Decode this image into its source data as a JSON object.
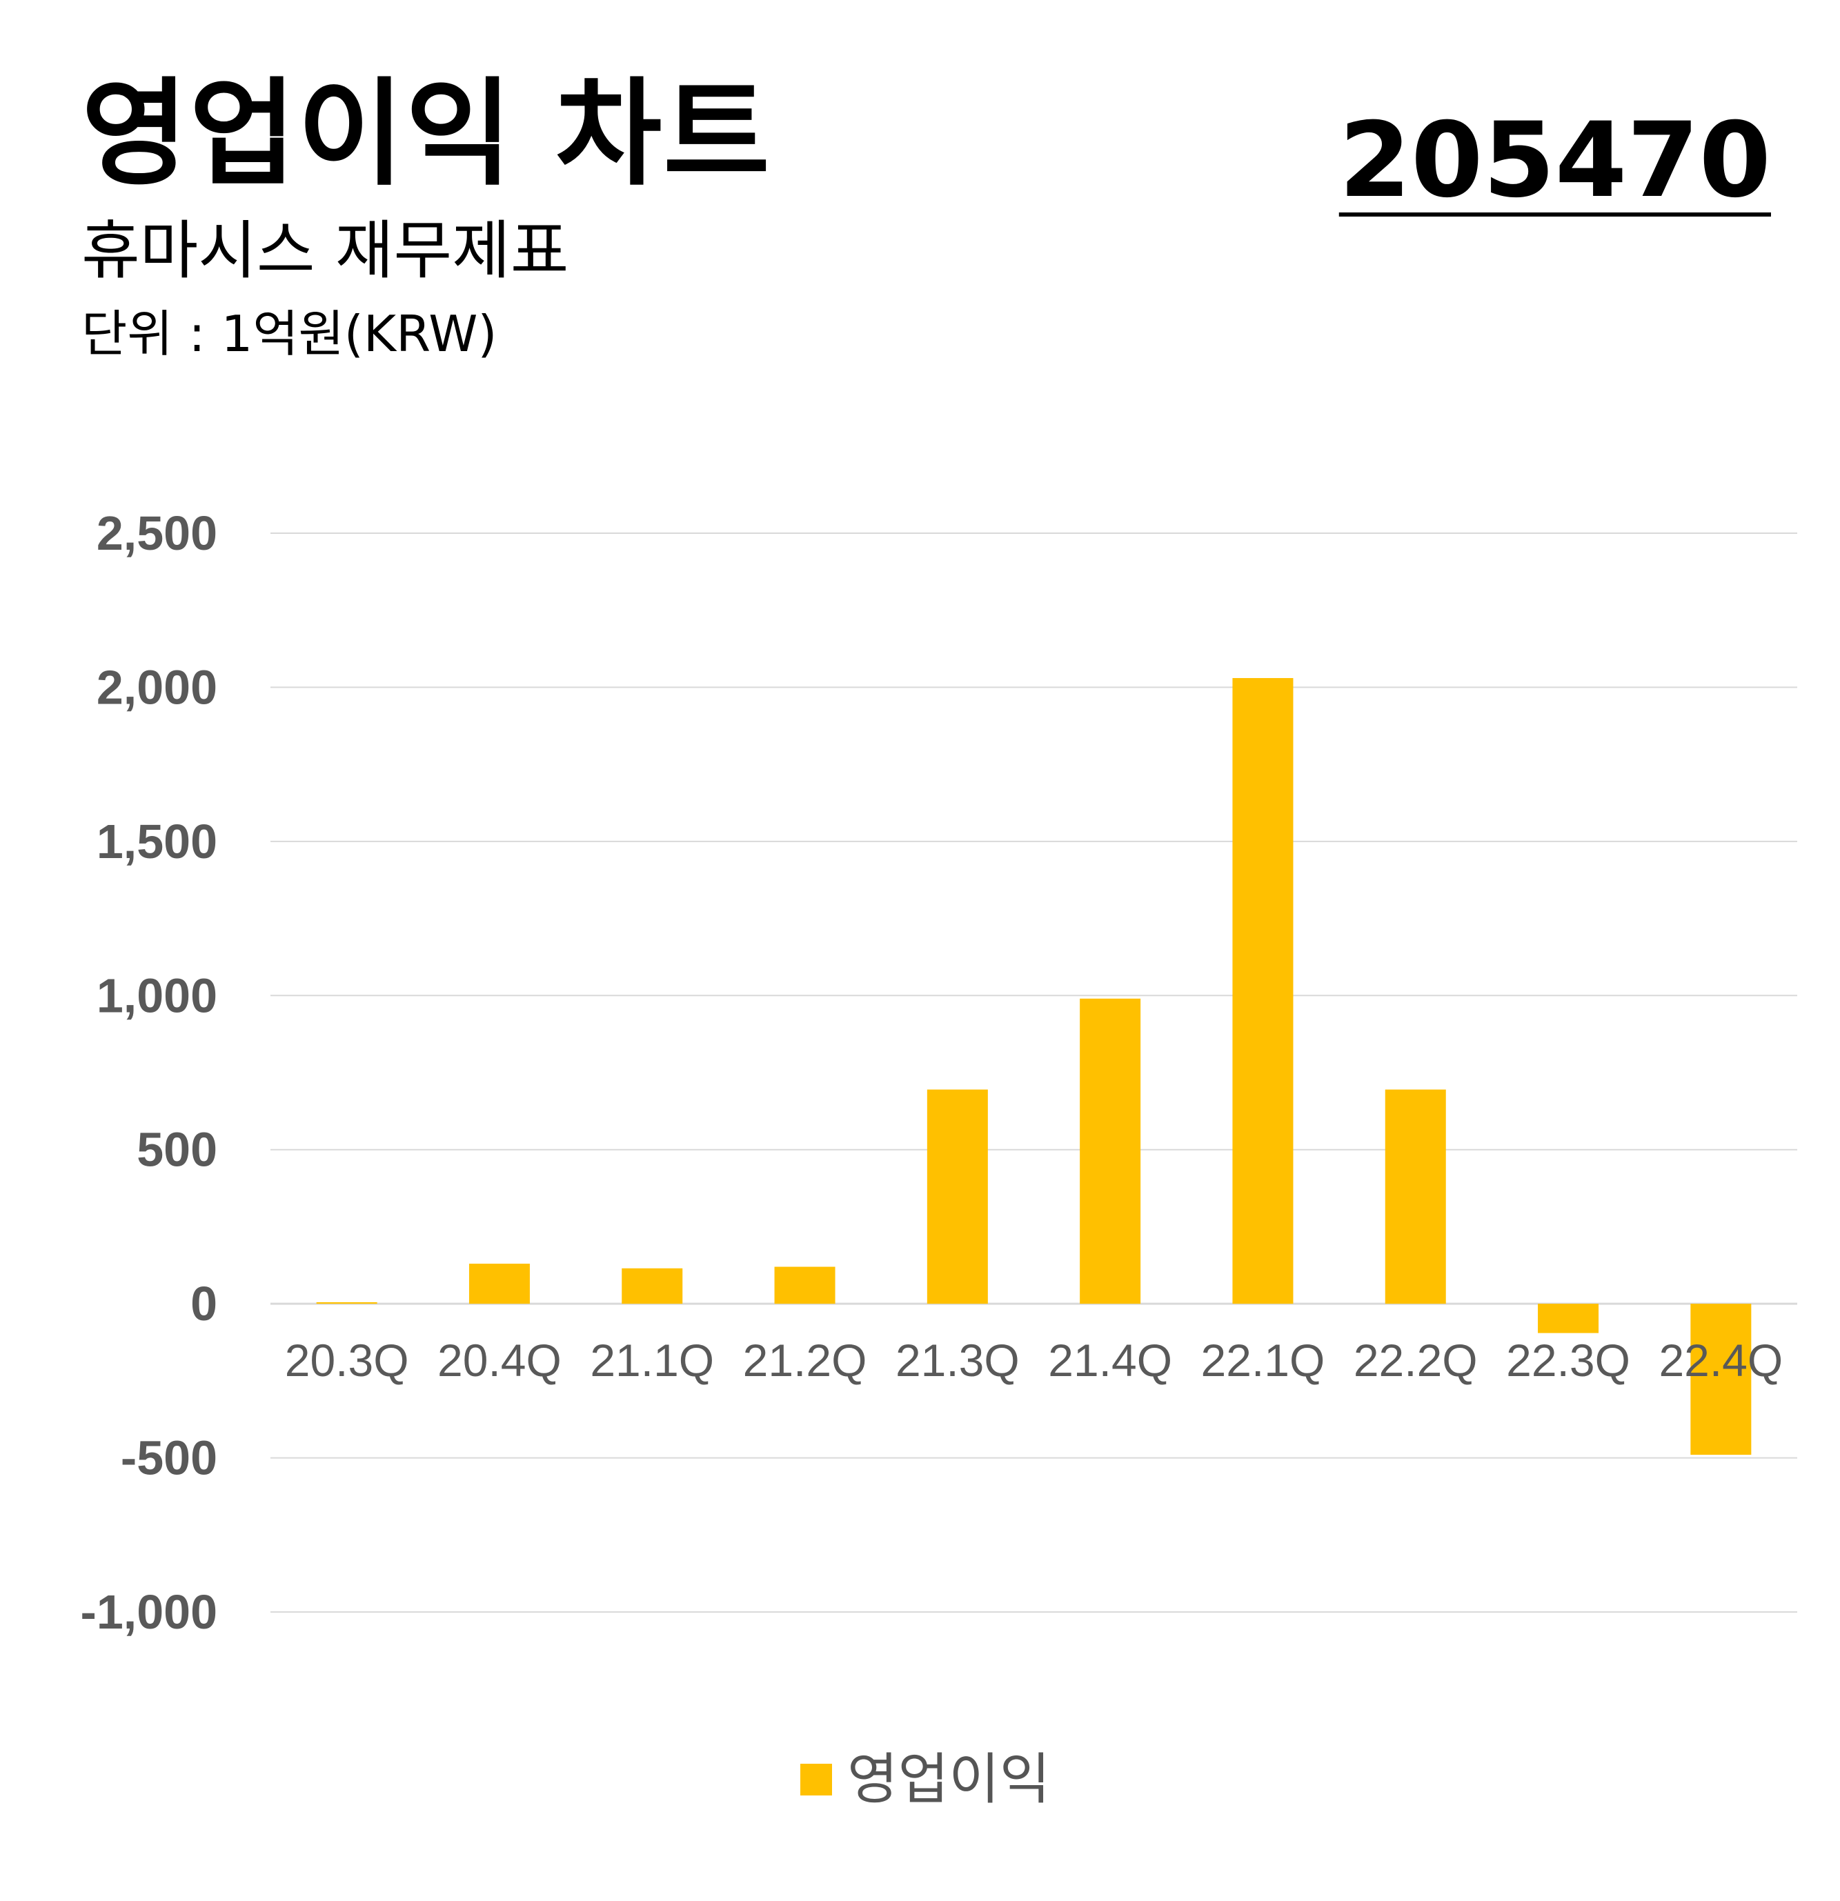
{
  "header": {
    "title": "영업이익 차트",
    "subtitle": "휴마시스 재무제표",
    "unit": "단위 : 1억원(KRW)",
    "code": "205470"
  },
  "colors": {
    "bar": "#FFC000",
    "grid": "#D9D9D9",
    "tick_text": "#595959"
  },
  "chart_data": {
    "type": "bar",
    "categories": [
      "20.3Q",
      "20.4Q",
      "21.1Q",
      "21.2Q",
      "21.3Q",
      "21.4Q",
      "22.1Q",
      "22.2Q",
      "22.3Q",
      "22.4Q"
    ],
    "series": [
      {
        "name": "영업이익",
        "values": [
          5,
          130,
          115,
          120,
          695,
          990,
          2030,
          695,
          -95,
          -490
        ]
      }
    ],
    "ylim": [
      -1000,
      2500
    ],
    "yticks": [
      2500,
      2000,
      1500,
      1000,
      500,
      0,
      -500,
      -1000
    ],
    "ytick_labels": [
      "2,500",
      "2,000",
      "1,500",
      "1,000",
      "500",
      "0",
      "-500",
      "-1,000"
    ],
    "grid": true,
    "legend": "bottom"
  }
}
